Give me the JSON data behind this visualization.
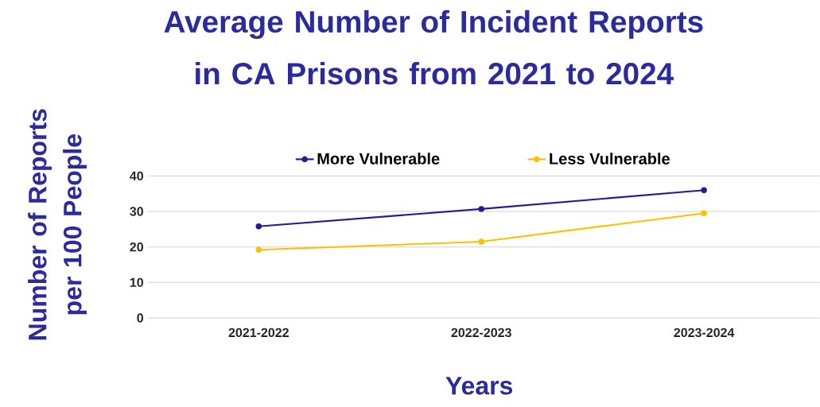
{
  "chart_data": {
    "type": "line",
    "title": "Average Number of Incident Reports in CA Prisons from 2021 to 2024",
    "xlabel": "Years",
    "ylabel": "Number of Reports per 100 People",
    "categories": [
      "2021-2022",
      "2022-2023",
      "2023-2024"
    ],
    "series": [
      {
        "name": "More Vulnerable",
        "color": "#1f1f8f",
        "values": [
          25.8,
          30.7,
          36.0
        ]
      },
      {
        "name": "Less Vulnerable",
        "color": "#ffc000",
        "values": [
          19.2,
          21.5,
          29.5
        ]
      }
    ],
    "ylim": [
      0,
      40
    ],
    "yticks": [
      0,
      10,
      20,
      30,
      40
    ],
    "grid": "y",
    "legend": "top",
    "marker": "circle",
    "line_style": "solid"
  }
}
